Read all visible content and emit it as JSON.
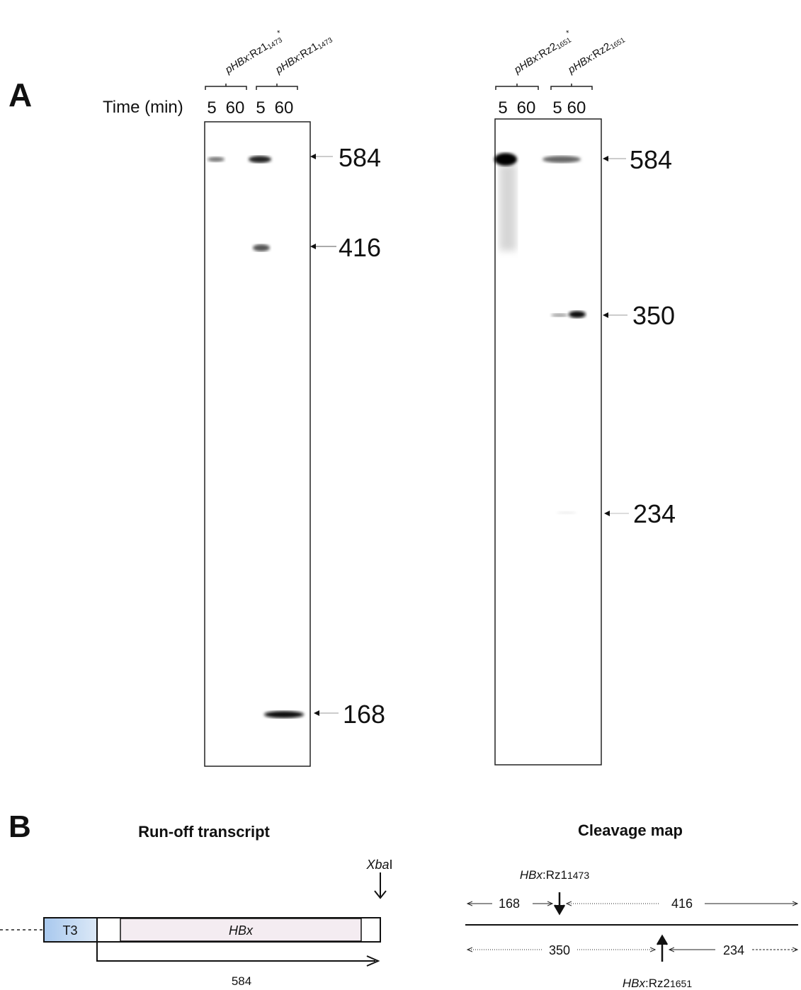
{
  "panel_a": {
    "label": "A",
    "time_label": "Time (min)",
    "gels": [
      {
        "lanes": [
          {
            "construct": {
              "italic": "pHBx",
              "text": ":Rz1",
              "sub": "1473",
              "sup": "*"
            },
            "times": [
              "5",
              "60"
            ]
          },
          {
            "construct": {
              "italic": "pHBx",
              "text": ":Rz1",
              "sub": "1473"
            },
            "times": [
              "5",
              "60"
            ]
          }
        ],
        "markers": [
          584,
          416,
          168
        ]
      },
      {
        "lanes": [
          {
            "construct": {
              "italic": "pHBx",
              "text": ":Rz2",
              "sub": "1651",
              "sup": "*"
            },
            "times": [
              "5",
              "60"
            ]
          },
          {
            "construct": {
              "italic": "pHBx",
              "text": ":Rz2",
              "sub": "1651"
            },
            "times": [
              "5",
              "60"
            ]
          }
        ],
        "markers": [
          584,
          350,
          234
        ]
      }
    ]
  },
  "panel_b": {
    "label": "B",
    "transcript": {
      "title": "Run-off transcript",
      "promoter": "T3",
      "gene": "HBx",
      "length": 584,
      "site": {
        "italic": "Xba",
        "text": "I"
      }
    },
    "cleavage_map": {
      "title": "Cleavage map",
      "top_site": {
        "italic": "HBx",
        "text": ":Rz1",
        "sub": "1473"
      },
      "top_fragments": [
        168,
        416
      ],
      "bottom_fragments": [
        350,
        234
      ],
      "bottom_site": {
        "italic": "HBx",
        "text": ":Rz2",
        "sub": "1651"
      }
    }
  }
}
